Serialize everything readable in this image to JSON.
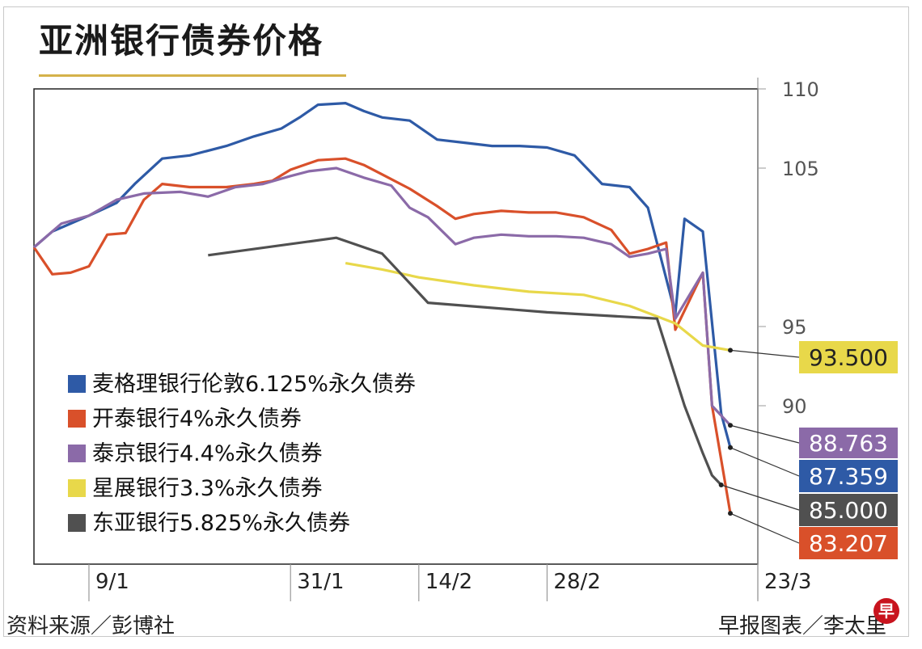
{
  "title": "亚洲银行债券价格",
  "source": "资料来源／彭博社",
  "credit": "早报图表／李太里",
  "logo_text": "早",
  "chart_data": {
    "type": "line",
    "title": "亚洲银行债券价格",
    "ylim": [
      80,
      110
    ],
    "yticks": [
      90,
      95,
      105,
      110
    ],
    "xlim": [
      "2023-01-03",
      "2023-03-23"
    ],
    "x_ticks": [
      {
        "date": "2023-01-09",
        "label": "9/1"
      },
      {
        "date": "2023-01-31",
        "label": "31/1"
      },
      {
        "date": "2023-02-14",
        "label": "14/2"
      },
      {
        "date": "2023-02-28",
        "label": "28/2"
      },
      {
        "date": "2023-03-23",
        "label": "23/3"
      }
    ],
    "grid": false,
    "legend": "bottom-left",
    "series": [
      {
        "name": "麦格理银行伦敦6.125%永久债券",
        "color": "#2e5aa6",
        "final": "87.359",
        "x": [
          "2023-01-03",
          "2023-01-05",
          "2023-01-07",
          "2023-01-09",
          "2023-01-12",
          "2023-01-14",
          "2023-01-17",
          "2023-01-20",
          "2023-01-24",
          "2023-01-27",
          "2023-01-30",
          "2023-02-01",
          "2023-02-03",
          "2023-02-06",
          "2023-02-08",
          "2023-02-10",
          "2023-02-13",
          "2023-02-16",
          "2023-02-19",
          "2023-02-22",
          "2023-02-25",
          "2023-02-28",
          "2023-03-03",
          "2023-03-06",
          "2023-03-09",
          "2023-03-11",
          "2023-03-14",
          "2023-03-15",
          "2023-03-17",
          "2023-03-19",
          "2023-03-20"
        ],
        "values": [
          100.0,
          101.0,
          101.5,
          102.0,
          102.8,
          104.0,
          105.6,
          105.8,
          106.4,
          107.0,
          107.5,
          108.2,
          109.0,
          109.1,
          108.6,
          108.2,
          108.0,
          106.8,
          106.6,
          106.4,
          106.4,
          106.3,
          105.8,
          104.0,
          103.8,
          102.5,
          95.8,
          101.8,
          101.0,
          89.5,
          87.359
        ]
      },
      {
        "name": "开泰银行4%永久债券",
        "color": "#d9502a",
        "final": "83.207",
        "x": [
          "2023-01-03",
          "2023-01-05",
          "2023-01-07",
          "2023-01-09",
          "2023-01-11",
          "2023-01-13",
          "2023-01-15",
          "2023-01-17",
          "2023-01-20",
          "2023-01-24",
          "2023-01-27",
          "2023-01-29",
          "2023-01-31",
          "2023-02-03",
          "2023-02-06",
          "2023-02-08",
          "2023-02-10",
          "2023-02-13",
          "2023-02-16",
          "2023-02-18",
          "2023-02-20",
          "2023-02-23",
          "2023-02-26",
          "2023-03-01",
          "2023-03-04",
          "2023-03-07",
          "2023-03-09",
          "2023-03-11",
          "2023-03-13",
          "2023-03-14",
          "2023-03-17",
          "2023-03-18",
          "2023-03-20"
        ],
        "values": [
          100.0,
          98.3,
          98.4,
          98.8,
          100.8,
          100.9,
          103.0,
          104.0,
          103.8,
          103.8,
          104.0,
          104.2,
          104.9,
          105.5,
          105.6,
          105.2,
          104.6,
          103.7,
          102.6,
          101.8,
          102.1,
          102.3,
          102.2,
          102.2,
          101.9,
          101.1,
          99.6,
          99.9,
          100.3,
          94.8,
          98.4,
          90.0,
          83.207
        ]
      },
      {
        "name": "泰京银行4.4%永久债券",
        "color": "#8b6aa8",
        "final": "88.763",
        "x": [
          "2023-01-03",
          "2023-01-06",
          "2023-01-09",
          "2023-01-12",
          "2023-01-15",
          "2023-01-19",
          "2023-01-22",
          "2023-01-25",
          "2023-01-28",
          "2023-01-31",
          "2023-02-02",
          "2023-02-05",
          "2023-02-08",
          "2023-02-11",
          "2023-02-13",
          "2023-02-15",
          "2023-02-18",
          "2023-02-20",
          "2023-02-23",
          "2023-02-26",
          "2023-03-01",
          "2023-03-04",
          "2023-03-07",
          "2023-03-09",
          "2023-03-11",
          "2023-03-13",
          "2023-03-14",
          "2023-03-17",
          "2023-03-18",
          "2023-03-20"
        ],
        "values": [
          100.0,
          101.5,
          102.0,
          103.0,
          103.4,
          103.5,
          103.2,
          103.8,
          104.0,
          104.5,
          104.8,
          105.0,
          104.4,
          103.9,
          102.5,
          101.9,
          100.2,
          100.6,
          100.8,
          100.7,
          100.7,
          100.6,
          100.2,
          99.4,
          99.6,
          99.9,
          95.5,
          98.4,
          90.0,
          88.763
        ]
      },
      {
        "name": "星展银行3.3%永久债券",
        "color": "#e8d84a",
        "final": "93.500",
        "x": [
          "2023-02-06",
          "2023-02-10",
          "2023-02-14",
          "2023-02-20",
          "2023-02-26",
          "2023-03-04",
          "2023-03-09",
          "2023-03-14",
          "2023-03-17",
          "2023-03-20"
        ],
        "values": [
          99.0,
          98.6,
          98.1,
          97.6,
          97.2,
          97.0,
          96.3,
          95.2,
          93.8,
          93.5
        ]
      },
      {
        "name": "东亚银行5.825%永久债券",
        "color": "#505050",
        "final": "85.000",
        "x": [
          "2023-01-22",
          "2023-02-05",
          "2023-02-10",
          "2023-02-15",
          "2023-02-28",
          "2023-03-12",
          "2023-03-15",
          "2023-03-17",
          "2023-03-18",
          "2023-03-19"
        ],
        "values": [
          99.5,
          100.6,
          99.6,
          96.5,
          95.9,
          95.5,
          90.0,
          87.0,
          85.6,
          85.0
        ]
      }
    ]
  }
}
